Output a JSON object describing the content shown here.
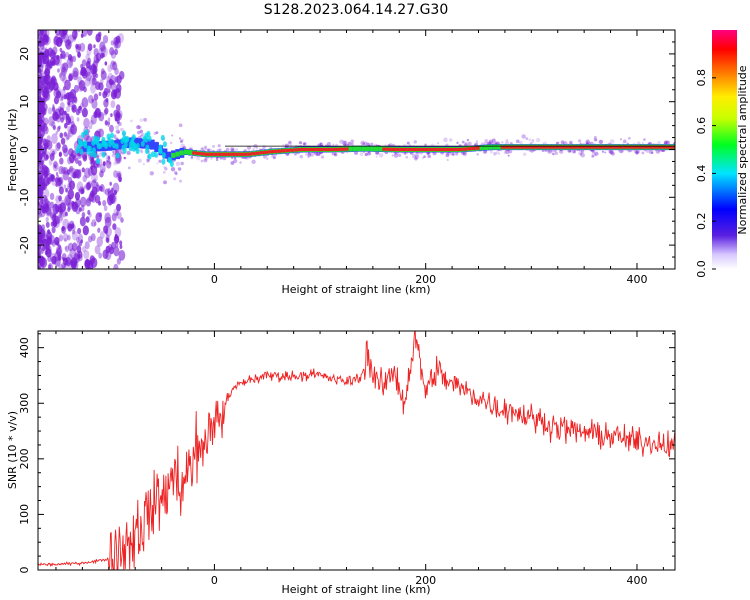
{
  "title": "S128.2023.064.14.27.G30",
  "colors": {
    "snr_line": "#ee2222",
    "track_core": "#ee2222",
    "track_mid": "#22dd33",
    "track_outer": "#3344ff",
    "scatter": "#7a1fd6"
  },
  "chart_data": [
    {
      "type": "heatmap",
      "xlabel": "Height of straight line (km)",
      "ylabel": "Frequency (Hz)",
      "xlim": [
        -167,
        436
      ],
      "ylim": [
        -25,
        25
      ],
      "xticks": [
        0,
        200,
        400
      ],
      "yticks": [
        -20,
        -10,
        0,
        10,
        20
      ],
      "colorbar": {
        "label": "Normalized spectral amplitude",
        "range": [
          0.0,
          1.0
        ],
        "ticks": [
          "0.0",
          "0.2",
          "0.4",
          "0.6",
          "0.8"
        ],
        "tick_values": [
          0.0,
          0.2,
          0.4,
          0.6,
          0.8
        ]
      },
      "track": {
        "x": [
          -130,
          -100,
          -80,
          -60,
          -45,
          -30,
          -10,
          10,
          30,
          50,
          80,
          110,
          140,
          170,
          200,
          230,
          260,
          300,
          340,
          380,
          420,
          436
        ],
        "y": [
          0.5,
          0.8,
          1.5,
          1.0,
          -1.5,
          -0.5,
          -1.0,
          -1.0,
          -1.0,
          -0.5,
          0.0,
          0.0,
          0.2,
          0.0,
          0.0,
          0.0,
          0.5,
          0.5,
          0.5,
          0.5,
          0.5,
          0.5
        ],
        "amplitude": [
          0.2,
          0.3,
          0.35,
          0.3,
          0.4,
          0.6,
          0.8,
          0.8,
          0.85,
          0.7,
          0.95,
          0.7,
          0.6,
          0.7,
          0.9,
          0.75,
          0.6,
          0.85,
          0.9,
          0.85,
          0.9,
          0.9
        ]
      }
    },
    {
      "type": "line",
      "xlabel": "Height of straight line (km)",
      "ylabel": "SNR (10 * v/v)",
      "xlim": [
        -167,
        436
      ],
      "ylim": [
        0,
        430
      ],
      "xticks": [
        0,
        200,
        400
      ],
      "yticks": [
        0,
        100,
        200,
        300,
        400
      ],
      "series": [
        {
          "x": [
            -167,
            -150,
            -130,
            -115,
            -100,
            -90,
            -80,
            -70,
            -60,
            -50,
            -40,
            -35,
            -30,
            -25,
            -20,
            -15,
            -10,
            -5,
            0,
            10,
            20,
            30,
            40,
            50,
            60,
            70,
            80,
            90,
            100,
            110,
            120,
            130,
            140,
            145,
            150,
            155,
            160,
            170,
            180,
            190,
            200,
            210,
            220,
            230,
            240,
            250,
            260,
            270,
            280,
            290,
            300,
            320,
            340,
            360,
            380,
            400,
            420,
            436
          ],
          "y": [
            10,
            10,
            12,
            15,
            20,
            35,
            55,
            80,
            110,
            130,
            160,
            170,
            150,
            180,
            200,
            210,
            230,
            250,
            260,
            300,
            330,
            340,
            345,
            350,
            350,
            348,
            350,
            352,
            350,
            345,
            340,
            340,
            350,
            395,
            350,
            335,
            330,
            360,
            300,
            420,
            320,
            360,
            340,
            330,
            320,
            310,
            300,
            290,
            290,
            280,
            275,
            260,
            250,
            245,
            240,
            230,
            230,
            225
          ]
        }
      ]
    }
  ]
}
